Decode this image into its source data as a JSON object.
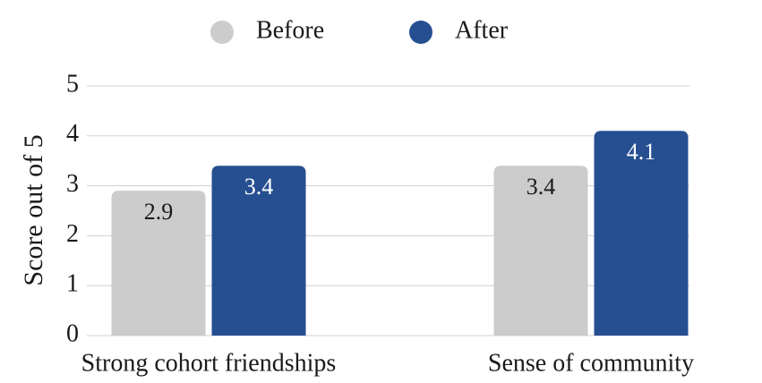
{
  "chart_data": {
    "type": "bar",
    "categories": [
      "Strong cohort friendships",
      "Sense of community"
    ],
    "series": [
      {
        "name": "Before",
        "color": "#cccccc",
        "values": [
          2.9,
          3.4
        ]
      },
      {
        "name": "After",
        "color": "#264f91",
        "values": [
          3.4,
          4.1
        ]
      }
    ],
    "y_label": "Score out of 5",
    "ylim": [
      0,
      5
    ],
    "yticks": [
      0,
      1,
      2,
      3,
      4,
      5
    ],
    "grid": true,
    "legend": "top"
  }
}
